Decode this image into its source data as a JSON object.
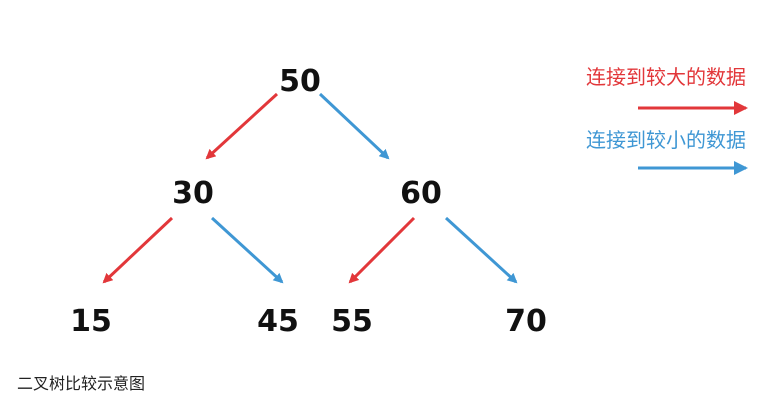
{
  "colors": {
    "red": "#e2373a",
    "blue": "#3f97d4",
    "text": "#111111"
  },
  "tree": {
    "nodes": [
      {
        "id": "n50",
        "label": "50"
      },
      {
        "id": "n30",
        "label": "30"
      },
      {
        "id": "n60",
        "label": "60"
      },
      {
        "id": "n15",
        "label": "15"
      },
      {
        "id": "n45",
        "label": "45"
      },
      {
        "id": "n55",
        "label": "55"
      },
      {
        "id": "n70",
        "label": "70"
      }
    ],
    "edges": [
      {
        "from": "n50",
        "to": "n30",
        "kind": "red"
      },
      {
        "from": "n50",
        "to": "n60",
        "kind": "blue"
      },
      {
        "from": "n30",
        "to": "n15",
        "kind": "red"
      },
      {
        "from": "n30",
        "to": "n45",
        "kind": "blue"
      },
      {
        "from": "n60",
        "to": "n55",
        "kind": "red"
      },
      {
        "from": "n60",
        "to": "n70",
        "kind": "blue"
      }
    ]
  },
  "legend": {
    "red_label": "连接到较大的数据",
    "blue_label": "连接到较小的数据"
  },
  "caption": "二叉树比较示意图"
}
